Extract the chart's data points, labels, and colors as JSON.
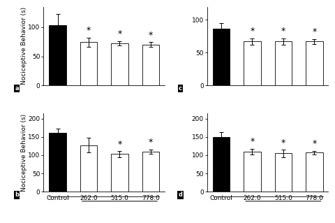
{
  "panels": {
    "a": {
      "values": [
        103,
        74,
        72,
        70
      ],
      "errors": [
        20,
        8,
        4,
        4
      ],
      "ylim": [
        0,
        135
      ],
      "yticks": [
        0,
        50,
        100
      ],
      "label": "a",
      "ylabel": "Nociceptive Behavior (s)",
      "sig_mask": [
        false,
        true,
        true,
        true
      ]
    },
    "c": {
      "values": [
        87,
        67,
        67,
        67
      ],
      "errors": [
        8,
        5,
        5,
        4
      ],
      "ylim": [
        0,
        120
      ],
      "yticks": [
        0,
        50,
        100
      ],
      "label": "c",
      "ylabel": "",
      "sig_mask": [
        false,
        true,
        true,
        true
      ]
    },
    "b": {
      "values": [
        160,
        127,
        103,
        110
      ],
      "errors": [
        12,
        20,
        8,
        6
      ],
      "ylim": [
        0,
        215
      ],
      "yticks": [
        0,
        50,
        100,
        150,
        200
      ],
      "label": "b",
      "ylabel": "Nociceptive Behavior (s)",
      "sig_mask": [
        false,
        false,
        true,
        true
      ]
    },
    "d": {
      "values": [
        150,
        110,
        105,
        107
      ],
      "errors": [
        12,
        8,
        10,
        5
      ],
      "ylim": [
        0,
        215
      ],
      "yticks": [
        0,
        50,
        100,
        150,
        200
      ],
      "label": "d",
      "ylabel": "",
      "sig_mask": [
        false,
        true,
        true,
        true
      ]
    }
  },
  "categories": [
    "Control",
    "262.0",
    "515.0",
    "778.0"
  ],
  "bar_colors": [
    "black",
    "white",
    "white",
    "white"
  ],
  "bar_edgecolor": "black",
  "background_color": "white",
  "fontsize_tick": 6.5,
  "fontsize_label": 6.5,
  "fontsize_panel": 6,
  "fontsize_star": 9,
  "bar_width": 0.55,
  "capsize": 2
}
